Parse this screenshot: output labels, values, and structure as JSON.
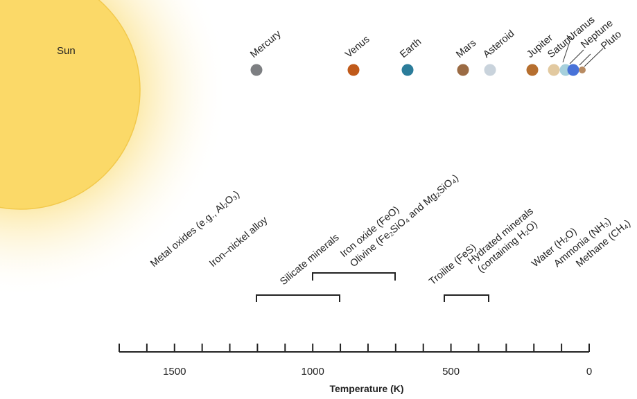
{
  "sun": "Sun",
  "planets": [
    "Mercury",
    "Venus",
    "Earth",
    "Mars",
    "Asteroid",
    "Jupiter",
    "Saturn",
    "Uranus",
    "Neptune",
    "Pluto"
  ],
  "minerals": [
    "Metal oxides (e.g., Al₂O₃)",
    "Iron–nickel alloy",
    "Silicate minerals",
    "Iron oxide (FeO)",
    "Olivine (Fe₂SiO₄ and Mg₂SiO₄)",
    "Troilite (FeS)",
    "Hydrated minerals",
    "(containing H₂O)",
    "Water (H₂O)",
    "Ammonia (NH₃)",
    "Methane (CH₄)"
  ],
  "axis": {
    "label": "Temperature (K)",
    "xlim": [
      1700,
      0
    ],
    "xticks": [
      1500,
      1000,
      500,
      0
    ],
    "minor_ticks": [
      1700,
      1600,
      1400,
      1300,
      1200,
      1100,
      900,
      800,
      700,
      600,
      400,
      300,
      200,
      100
    ]
  }
}
